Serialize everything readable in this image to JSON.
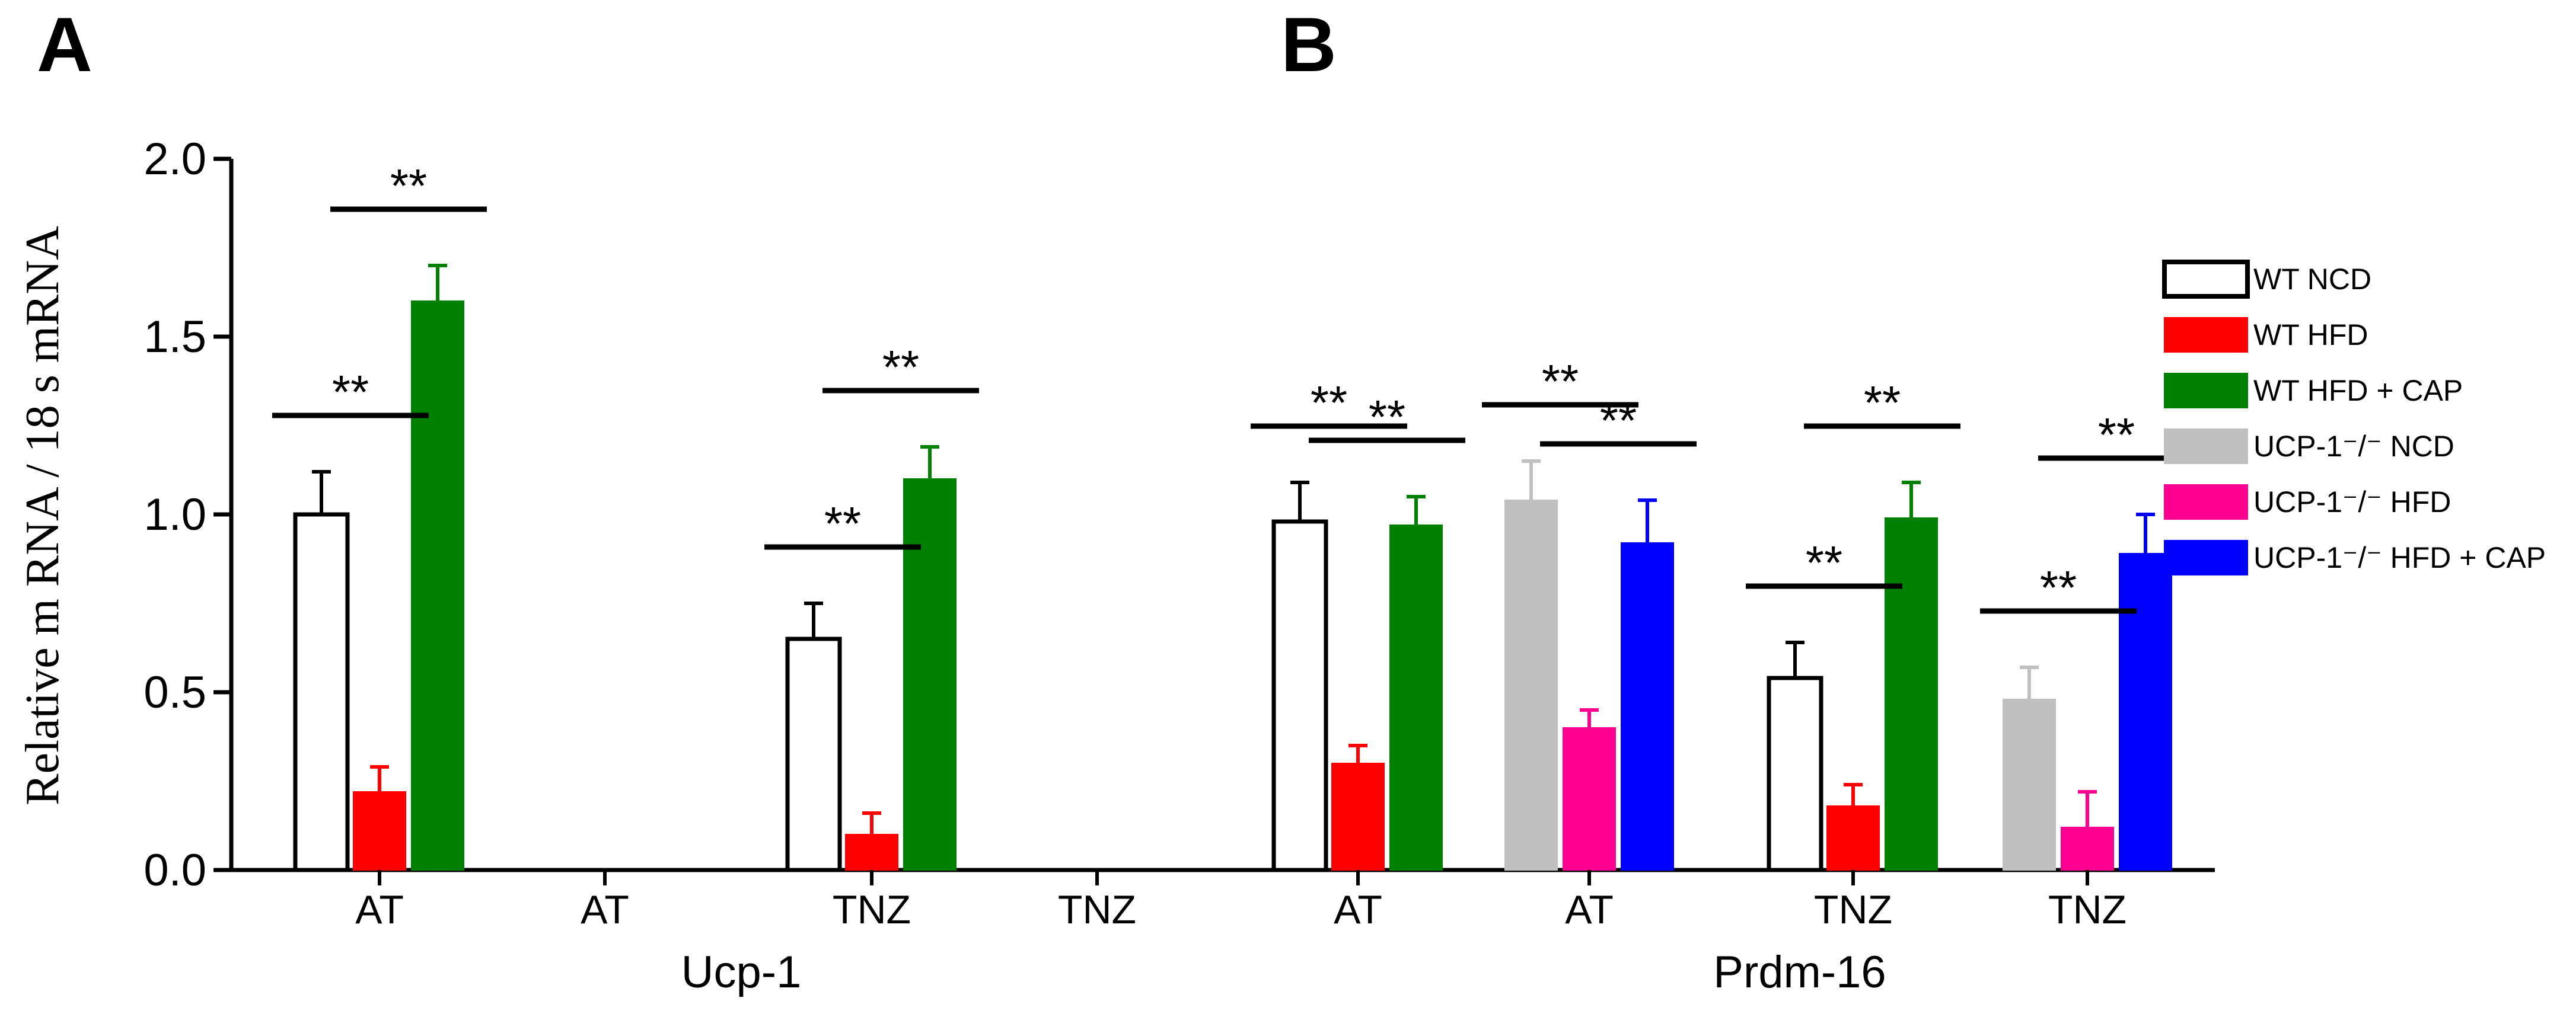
{
  "panels": {
    "a_label": "A",
    "b_label": "B"
  },
  "chart_data": {
    "type": "bar",
    "title": "",
    "xlabel": "",
    "ylabel": "Relative m RNA / 18 s mRNA",
    "ylim": [
      0,
      2.0
    ],
    "yticks": [
      "0.0",
      "0.5",
      "1.0",
      "1.5",
      "2.0"
    ],
    "gene_labels": [
      "Ucp-1",
      "Prdm-16"
    ],
    "significance_label": "**",
    "legend": [
      {
        "key": "wt_ncd",
        "name": "WT NCD",
        "color": "#ffffff",
        "outline": true
      },
      {
        "key": "wt_hfd",
        "name": "WT HFD",
        "color": "#ff0000"
      },
      {
        "key": "wt_hfd_cap",
        "name": "WT HFD + CAP",
        "color": "#008000"
      },
      {
        "key": "ko_ncd",
        "name": "UCP-1⁻/⁻ NCD",
        "color": "#c0c0c0"
      },
      {
        "key": "ko_hfd",
        "name": "UCP-1⁻/⁻ HFD",
        "color": "#ff0090"
      },
      {
        "key": "ko_hfd_cap",
        "name": "UCP-1⁻/⁻ HFD + CAP",
        "color": "#0000ff"
      }
    ],
    "groups": [
      {
        "label": "AT",
        "gene": "Ucp-1",
        "genotype": "WT",
        "values": [
          1.0,
          0.22,
          1.6
        ],
        "errors": [
          0.12,
          0.07,
          0.1
        ],
        "sig_pairs": [
          [
            0,
            1
          ],
          [
            1,
            2
          ]
        ]
      },
      {
        "label": "AT",
        "gene": "Ucp-1",
        "genotype": "UCP-1⁻/⁻",
        "values": [],
        "errors": [],
        "sig_pairs": []
      },
      {
        "label": "TNZ",
        "gene": "Ucp-1",
        "genotype": "WT",
        "values": [
          0.65,
          0.1,
          1.1
        ],
        "errors": [
          0.1,
          0.06,
          0.09
        ],
        "sig_pairs": [
          [
            0,
            1
          ],
          [
            1,
            2
          ]
        ]
      },
      {
        "label": "TNZ",
        "gene": "Ucp-1",
        "genotype": "UCP-1⁻/⁻",
        "values": [],
        "errors": [],
        "sig_pairs": []
      },
      {
        "label": "AT",
        "gene": "Prdm-16",
        "genotype": "WT",
        "values": [
          0.98,
          0.3,
          0.97
        ],
        "errors": [
          0.11,
          0.05,
          0.08
        ],
        "sig_pairs": [
          [
            0,
            1
          ],
          [
            1,
            2
          ]
        ]
      },
      {
        "label": "AT",
        "gene": "Prdm-16",
        "genotype": "UCP-1⁻/⁻",
        "values": [
          1.04,
          0.4,
          0.92
        ],
        "errors": [
          0.11,
          0.05,
          0.12
        ],
        "sig_pairs": [
          [
            0,
            1
          ],
          [
            1,
            2
          ]
        ]
      },
      {
        "label": "TNZ",
        "gene": "Prdm-16",
        "genotype": "WT",
        "values": [
          0.54,
          0.18,
          0.99
        ],
        "errors": [
          0.1,
          0.06,
          0.1
        ],
        "sig_pairs": [
          [
            0,
            1
          ],
          [
            1,
            2
          ]
        ]
      },
      {
        "label": "TNZ",
        "gene": "Prdm-16",
        "genotype": "UCP-1⁻/⁻",
        "values": [
          0.48,
          0.12,
          0.89
        ],
        "errors": [
          0.09,
          0.1,
          0.11
        ],
        "sig_pairs": [
          [
            0,
            1
          ],
          [
            1,
            2
          ]
        ]
      }
    ]
  }
}
